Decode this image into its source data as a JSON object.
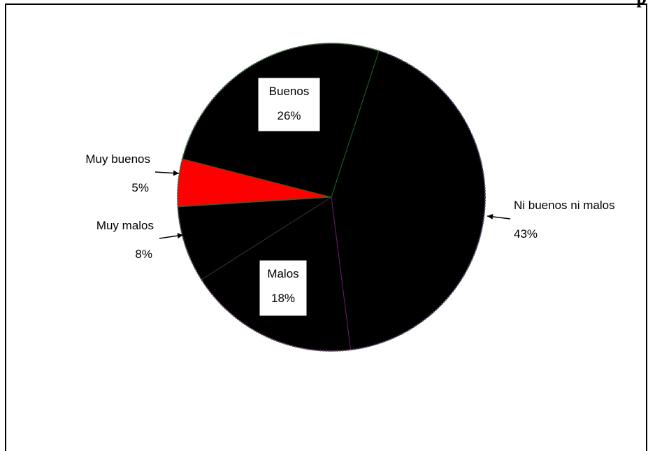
{
  "chart_data": {
    "type": "pie",
    "title": "",
    "cut_title_fragment": "p",
    "slices": [
      {
        "label": "Ni buenos ni malos",
        "value": 43,
        "value_label": "43%",
        "color": "#000000"
      },
      {
        "label": "Malos",
        "value": 18,
        "value_label": "18%",
        "color": "#000000"
      },
      {
        "label": "Muy malos",
        "value": 8,
        "value_label": "8%",
        "color": "#000000"
      },
      {
        "label": "Muy buenos",
        "value": 5,
        "value_label": "5%",
        "color": "#ff0000"
      },
      {
        "label": "Buenos",
        "value": 26,
        "value_label": "26%",
        "color": "#000000"
      }
    ],
    "legend": "none",
    "grid": false
  }
}
